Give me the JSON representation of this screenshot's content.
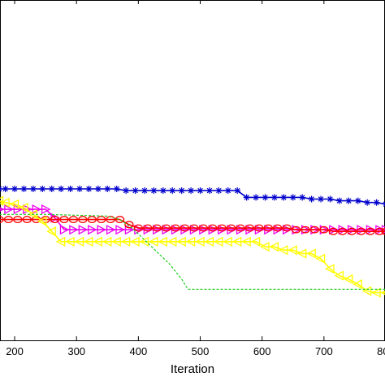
{
  "chart_data": {
    "type": "line",
    "xlabel": "Iteration",
    "ylabel": "",
    "title": "",
    "xlim": [
      175,
      800
    ],
    "ylim": [
      0,
      1
    ],
    "x_ticks": [
      200,
      300,
      400,
      500,
      600,
      700,
      800
    ],
    "x_tick_labels": [
      "200",
      "300",
      "400",
      "500",
      "600",
      "700",
      "800"
    ],
    "grid": false,
    "legend": "none",
    "series": [
      {
        "color": "#0000cc",
        "marker": "star",
        "x": [
          175,
          185,
          200,
          215,
          230,
          245,
          260,
          275,
          290,
          305,
          320,
          335,
          350,
          365,
          380,
          395,
          410,
          425,
          440,
          455,
          470,
          485,
          500,
          515,
          530,
          545,
          560,
          575,
          590,
          605,
          620,
          635,
          650,
          665,
          680,
          695,
          710,
          725,
          740,
          755,
          770,
          785,
          800
        ],
        "y": [
          0.445,
          0.445,
          0.445,
          0.445,
          0.445,
          0.445,
          0.445,
          0.445,
          0.445,
          0.445,
          0.445,
          0.445,
          0.445,
          0.445,
          0.44,
          0.44,
          0.44,
          0.44,
          0.44,
          0.44,
          0.44,
          0.44,
          0.44,
          0.44,
          0.44,
          0.44,
          0.44,
          0.42,
          0.42,
          0.42,
          0.42,
          0.42,
          0.42,
          0.42,
          0.415,
          0.415,
          0.415,
          0.41,
          0.41,
          0.41,
          0.405,
          0.405,
          0.4
        ]
      },
      {
        "color": "#ee00ee",
        "marker": "triangle-right",
        "x": [
          175,
          190,
          205,
          220,
          235,
          250,
          265,
          280,
          295,
          310,
          325,
          340,
          355,
          370,
          385,
          400,
          415,
          430,
          445,
          460,
          475,
          490,
          505,
          520,
          535,
          550,
          565,
          580,
          595,
          610,
          625,
          640,
          655,
          670,
          685,
          700,
          715,
          730,
          745,
          760,
          775,
          790,
          800
        ],
        "y": [
          0.385,
          0.385,
          0.385,
          0.385,
          0.385,
          0.385,
          0.36,
          0.325,
          0.325,
          0.325,
          0.325,
          0.325,
          0.325,
          0.325,
          0.325,
          0.325,
          0.325,
          0.325,
          0.325,
          0.325,
          0.325,
          0.325,
          0.325,
          0.325,
          0.325,
          0.325,
          0.325,
          0.325,
          0.325,
          0.325,
          0.325,
          0.325,
          0.325,
          0.325,
          0.325,
          0.325,
          0.325,
          0.325,
          0.325,
          0.325,
          0.325,
          0.325,
          0.325
        ]
      },
      {
        "color": "#ff0000",
        "marker": "circle",
        "x": [
          175,
          190,
          205,
          220,
          235,
          250,
          265,
          280,
          295,
          310,
          325,
          340,
          355,
          370,
          385,
          400,
          415,
          430,
          445,
          460,
          475,
          490,
          505,
          520,
          535,
          550,
          565,
          580,
          595,
          610,
          625,
          640,
          655,
          670,
          685,
          700,
          715,
          730,
          745,
          760,
          775,
          790,
          800
        ],
        "y": [
          0.355,
          0.355,
          0.355,
          0.355,
          0.355,
          0.355,
          0.355,
          0.355,
          0.355,
          0.355,
          0.355,
          0.355,
          0.355,
          0.355,
          0.34,
          0.33,
          0.33,
          0.33,
          0.33,
          0.33,
          0.33,
          0.33,
          0.33,
          0.33,
          0.33,
          0.33,
          0.33,
          0.33,
          0.33,
          0.33,
          0.33,
          0.33,
          0.325,
          0.325,
          0.325,
          0.325,
          0.32,
          0.32,
          0.32,
          0.32,
          0.32,
          0.32,
          0.32
        ]
      },
      {
        "color": "#ffff00",
        "marker": "triangle-left",
        "x": [
          175,
          185,
          200,
          215,
          230,
          245,
          260,
          275,
          290,
          305,
          320,
          335,
          350,
          365,
          380,
          395,
          410,
          425,
          440,
          455,
          470,
          485,
          500,
          515,
          530,
          545,
          560,
          575,
          590,
          605,
          620,
          635,
          650,
          665,
          680,
          695,
          710,
          725,
          740,
          755,
          770,
          785,
          800
        ],
        "y": [
          0.41,
          0.405,
          0.4,
          0.39,
          0.37,
          0.35,
          0.32,
          0.29,
          0.29,
          0.29,
          0.29,
          0.29,
          0.29,
          0.29,
          0.29,
          0.29,
          0.29,
          0.29,
          0.29,
          0.29,
          0.29,
          0.29,
          0.29,
          0.29,
          0.29,
          0.29,
          0.29,
          0.29,
          0.29,
          0.275,
          0.275,
          0.265,
          0.265,
          0.255,
          0.255,
          0.24,
          0.21,
          0.19,
          0.18,
          0.165,
          0.145,
          0.14,
          0.14
        ]
      },
      {
        "color": "#22cc22",
        "marker": "none",
        "style": "dashed",
        "x": [
          175,
          250,
          350,
          370,
          390,
          410,
          430,
          450,
          470,
          480,
          500,
          600,
          700,
          800
        ],
        "y": [
          0.37,
          0.37,
          0.365,
          0.355,
          0.33,
          0.295,
          0.26,
          0.225,
          0.18,
          0.15,
          0.15,
          0.15,
          0.15,
          0.15
        ]
      }
    ]
  }
}
